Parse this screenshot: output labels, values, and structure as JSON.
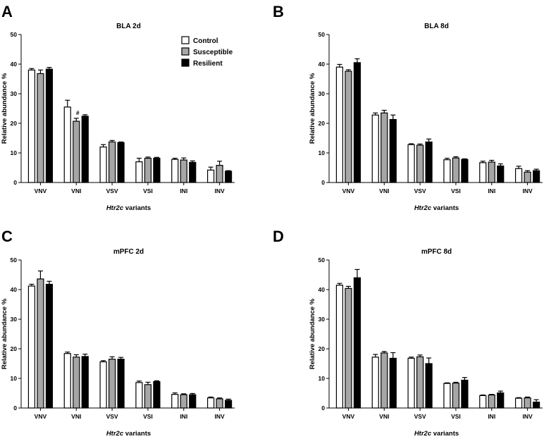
{
  "chart_data": [
    {
      "type": "bar",
      "panel": "A",
      "title": "BLA 2d",
      "categories": [
        "VNV",
        "VNI",
        "VSV",
        "VSI",
        "INI",
        "INV"
      ],
      "series": [
        {
          "name": "Control",
          "color": "#ffffff",
          "values": [
            38.0,
            25.5,
            12.0,
            7.0,
            7.8,
            4.2
          ],
          "errors": [
            0.5,
            2.3,
            0.8,
            1.2,
            0.4,
            1.0
          ]
        },
        {
          "name": "Susceptible",
          "color": "#a6a6a6",
          "values": [
            36.8,
            20.7,
            13.7,
            8.2,
            7.6,
            5.8
          ],
          "errors": [
            1.2,
            1.0,
            0.5,
            0.4,
            0.7,
            1.4
          ]
        },
        {
          "name": "Resilient",
          "color": "#000000",
          "values": [
            38.3,
            22.4,
            13.5,
            8.2,
            6.8,
            3.8
          ],
          "errors": [
            0.6,
            0.5,
            0.2,
            0.3,
            0.5,
            0.2
          ]
        }
      ],
      "annotations": [
        {
          "category": "VNI",
          "series": "Susceptible",
          "text": "#"
        }
      ],
      "xlabel_italic": "Htr2c",
      "xlabel_rest": " variants",
      "ylabel": "Relative abundance %",
      "ylim": [
        0,
        50
      ],
      "yticks": [
        0,
        10,
        20,
        30,
        40,
        50
      ]
    },
    {
      "type": "bar",
      "panel": "B",
      "title": "BLA 8d",
      "categories": [
        "VNV",
        "VNI",
        "VSV",
        "VSI",
        "INI",
        "INV"
      ],
      "series": [
        {
          "name": "Control",
          "color": "#ffffff",
          "values": [
            39.0,
            22.8,
            12.8,
            7.7,
            6.7,
            4.7
          ],
          "errors": [
            0.9,
            0.7,
            0.3,
            0.5,
            0.5,
            0.8
          ]
        },
        {
          "name": "Susceptible",
          "color": "#a6a6a6",
          "values": [
            37.6,
            23.5,
            12.6,
            8.3,
            6.9,
            3.5
          ],
          "errors": [
            0.5,
            0.9,
            0.4,
            0.4,
            0.6,
            0.5
          ]
        },
        {
          "name": "Resilient",
          "color": "#000000",
          "values": [
            40.5,
            21.3,
            13.7,
            7.8,
            5.6,
            4.0
          ],
          "errors": [
            1.3,
            1.5,
            1.0,
            0.2,
            0.7,
            0.5
          ]
        }
      ],
      "annotations": [],
      "xlabel_italic": "Htr2c",
      "xlabel_rest": " variants",
      "ylabel": "Relative abundance %",
      "ylim": [
        0,
        50
      ],
      "yticks": [
        0,
        10,
        20,
        30,
        40,
        50
      ]
    },
    {
      "type": "bar",
      "panel": "C",
      "title": "mPFC 2d",
      "categories": [
        "VNV",
        "VNI",
        "VSV",
        "VSI",
        "INI",
        "INV"
      ],
      "series": [
        {
          "name": "Control",
          "color": "#ffffff",
          "values": [
            41.2,
            18.4,
            15.6,
            8.6,
            4.6,
            3.4
          ],
          "errors": [
            0.6,
            0.5,
            0.4,
            0.5,
            0.5,
            0.3
          ]
        },
        {
          "name": "Susceptible",
          "color": "#a6a6a6",
          "values": [
            43.6,
            17.2,
            16.5,
            7.9,
            4.5,
            3.1
          ],
          "errors": [
            2.7,
            0.8,
            0.8,
            0.8,
            0.3,
            0.3
          ]
        },
        {
          "name": "Resilient",
          "color": "#000000",
          "values": [
            41.8,
            17.4,
            16.5,
            8.9,
            4.5,
            2.6
          ],
          "errors": [
            1.0,
            0.8,
            0.6,
            0.3,
            0.4,
            0.4
          ]
        }
      ],
      "annotations": [],
      "xlabel_italic": "Htr2c",
      "xlabel_rest": " variants",
      "ylabel": "Relative abundance %",
      "ylim": [
        0,
        50
      ],
      "yticks": [
        0,
        10,
        20,
        30,
        40,
        50
      ]
    },
    {
      "type": "bar",
      "panel": "D",
      "title": "mPFC 8d",
      "categories": [
        "VNV",
        "VNI",
        "VSV",
        "VSI",
        "INI",
        "INV"
      ],
      "series": [
        {
          "name": "Control",
          "color": "#ffffff",
          "values": [
            41.5,
            17.2,
            16.8,
            8.3,
            4.2,
            3.3
          ],
          "errors": [
            0.6,
            0.9,
            0.4,
            0.2,
            0.2,
            0.2
          ]
        },
        {
          "name": "Susceptible",
          "color": "#a6a6a6",
          "values": [
            40.4,
            18.6,
            17.3,
            8.4,
            4.4,
            3.4
          ],
          "errors": [
            0.7,
            0.5,
            0.6,
            0.3,
            0.2,
            0.3
          ]
        },
        {
          "name": "Resilient",
          "color": "#000000",
          "values": [
            44.0,
            16.8,
            15.0,
            9.4,
            5.1,
            2.0
          ],
          "errors": [
            2.8,
            1.9,
            1.9,
            0.9,
            0.6,
            0.8
          ]
        }
      ],
      "annotations": [],
      "xlabel_italic": "Htr2c",
      "xlabel_rest": " variants",
      "ylabel": "Relative abundance %",
      "ylim": [
        0,
        50
      ],
      "yticks": [
        0,
        10,
        20,
        30,
        40,
        50
      ]
    }
  ],
  "legend": {
    "items": [
      {
        "label": "Control",
        "color": "#ffffff"
      },
      {
        "label": "Susceptible",
        "color": "#a6a6a6"
      },
      {
        "label": "Resilient",
        "color": "#000000"
      }
    ]
  }
}
